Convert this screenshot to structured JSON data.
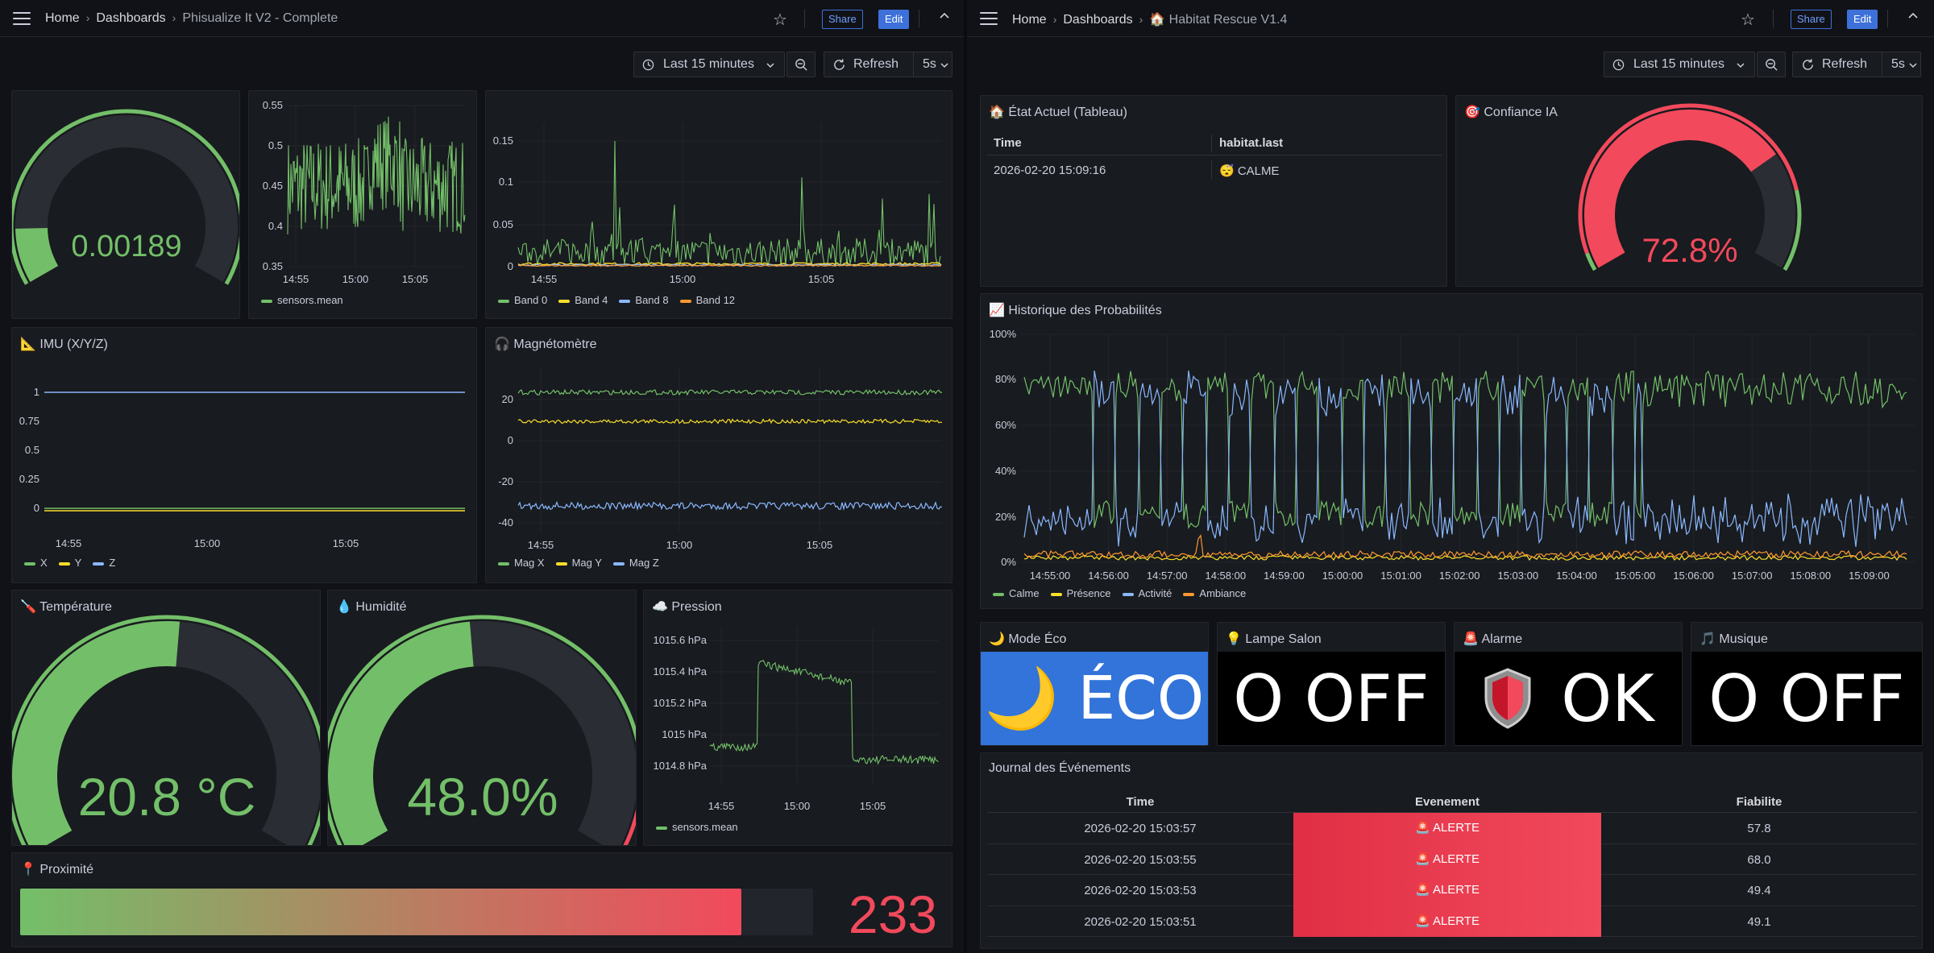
{
  "left": {
    "breadcrumb": {
      "home": "Home",
      "dashboards": "Dashboards",
      "current": "Phisualize It V2 - Complete"
    },
    "share": "Share",
    "edit": "Edit",
    "timepicker": "Last 15 minutes",
    "refresh": "Refresh",
    "interval": "5s",
    "gauge_top": {
      "value": "0.00189",
      "fraction": 0.12
    },
    "mean_panel": {
      "yticks": [
        "0.55",
        "0.5",
        "0.45",
        "0.4",
        "0.35"
      ],
      "xticks": [
        "14:55",
        "15:00",
        "15:05"
      ],
      "legend": "sensors.mean"
    },
    "bands": {
      "yticks": [
        "0.15",
        "0.1",
        "0.05",
        "0"
      ],
      "xticks": [
        "14:55",
        "15:00",
        "15:05"
      ],
      "legend": [
        "Band 0",
        "Band 4",
        "Band 8",
        "Band 12"
      ]
    },
    "imu": {
      "title": "📐 IMU (X/Y/Z)",
      "yticks": [
        "1",
        "0.75",
        "0.5",
        "0.25",
        "0"
      ],
      "xticks": [
        "14:55",
        "15:00",
        "15:05"
      ],
      "legend": [
        "X",
        "Y",
        "Z"
      ]
    },
    "mag": {
      "title": "🎧 Magnétomètre",
      "yticks": [
        "20",
        "0",
        "-20",
        "-40"
      ],
      "xticks": [
        "14:55",
        "15:00",
        "15:05"
      ],
      "legend": [
        "Mag X",
        "Mag Y",
        "Mag Z"
      ]
    },
    "temp": {
      "title": "🪛 Température",
      "value": "20.8 °C",
      "fraction": 0.52
    },
    "hum": {
      "title": "💧 Humidité",
      "value": "48.0%",
      "fraction": 0.48
    },
    "press": {
      "title": "☁️ Pression",
      "yticks": [
        "1015.6 hPa",
        "1015.4 hPa",
        "1015.2 hPa",
        "1015 hPa",
        "1014.8 hPa"
      ],
      "xticks": [
        "14:55",
        "15:00",
        "15:05"
      ],
      "legend": "sensors.mean"
    },
    "prox": {
      "title": "📍 Proximité",
      "value": "233",
      "fraction": 0.91
    }
  },
  "right": {
    "breadcrumb": {
      "home": "Home",
      "dashboards": "Dashboards",
      "current": "🏠 Habitat Rescue V1.4"
    },
    "share": "Share",
    "edit": "Edit",
    "timepicker": "Last 15 minutes",
    "refresh": "Refresh",
    "interval": "5s",
    "etat": {
      "title": "🏠 État Actuel (Tableau)",
      "headers": [
        "Time",
        "habitat.last"
      ],
      "row": [
        "2026-02-20 15:09:16",
        "😴 CALME"
      ]
    },
    "confiance": {
      "title": "🎯 Confiance IA",
      "value": "72.8%",
      "fraction": 0.728
    },
    "historique": {
      "title": "📈 Historique des Probabilités",
      "yticks": [
        "100%",
        "80%",
        "60%",
        "40%",
        "20%",
        "0%"
      ],
      "xticks": [
        "14:55:00",
        "14:56:00",
        "14:57:00",
        "14:58:00",
        "14:59:00",
        "15:00:00",
        "15:01:00",
        "15:02:00",
        "15:03:00",
        "15:04:00",
        "15:05:00",
        "15:06:00",
        "15:07:00",
        "15:08:00",
        "15:09:00"
      ],
      "legend": [
        "Calme",
        "Présence",
        "Activité",
        "Ambiance"
      ]
    },
    "eco": {
      "title": "🌙 Mode Éco",
      "value": "🌙 ÉCO"
    },
    "lampe": {
      "title": "💡 Lampe Salon",
      "value": "O OFF"
    },
    "alarme": {
      "title": "🚨 Alarme",
      "value": "OK"
    },
    "musique": {
      "title": "🎵 Musique",
      "value": "O OFF"
    },
    "journal": {
      "title": "Journal des Événements",
      "headers": [
        "Time",
        "Evenement",
        "Fiabilite"
      ],
      "rows": [
        [
          "2026-02-20 15:03:57",
          "🚨 ALERTE",
          "57.8"
        ],
        [
          "2026-02-20 15:03:55",
          "🚨 ALERTE",
          "68.0"
        ],
        [
          "2026-02-20 15:03:53",
          "🚨 ALERTE",
          "49.4"
        ],
        [
          "2026-02-20 15:03:51",
          "🚨 ALERTE",
          "49.1"
        ]
      ]
    }
  },
  "colors": {
    "green": "#73bf69",
    "yellow": "#fade2a",
    "blue": "#8ab8ff",
    "orange": "#ff9830",
    "red": "#f2495c",
    "accent": "#3d71d9",
    "eco_bg": "#3274d9"
  },
  "icons": [
    "hamburger-icon",
    "star-icon",
    "chevron-up-icon",
    "clock-icon",
    "chevron-down-icon",
    "zoom-out-icon",
    "refresh-icon",
    "shield-icon"
  ]
}
